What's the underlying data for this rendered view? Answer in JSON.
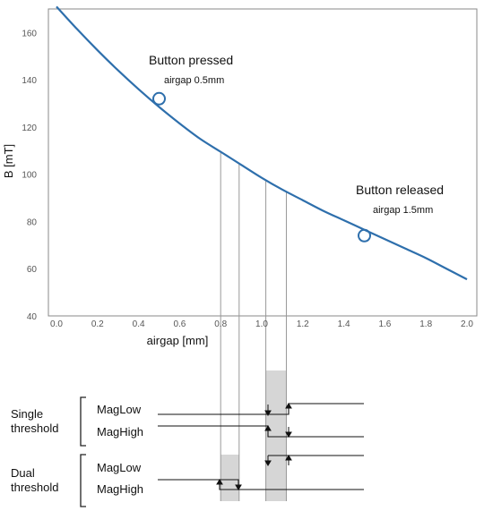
{
  "chart_data": {
    "type": "line",
    "xlabel": "airgap [mm]",
    "ylabel": "B [mT]",
    "xlim": [
      0.0,
      2.0
    ],
    "ylim": [
      40,
      170
    ],
    "x_ticks": [
      "0.0",
      "0.2",
      "0.4",
      "0.6",
      "0.8",
      "1.0",
      "1.2",
      "1.4",
      "1.6",
      "1.8",
      "2.0"
    ],
    "y_ticks": [
      "40",
      "60",
      "80",
      "100",
      "120",
      "140",
      "160"
    ],
    "grid": false,
    "series": [
      {
        "x": [
          0.0,
          0.1,
          0.2,
          0.3,
          0.4,
          0.5,
          0.6,
          0.7,
          0.8,
          0.9,
          1.0,
          1.1,
          1.2,
          1.3,
          1.4,
          1.5,
          1.6,
          1.7,
          1.8,
          1.9,
          2.0
        ],
        "y": [
          171,
          161.5,
          152.5,
          144,
          136,
          128.5,
          121.5,
          115,
          109.5,
          104,
          98.5,
          93.5,
          89,
          84.5,
          80.5,
          76.5,
          72.5,
          68.5,
          64.5,
          60,
          55.5
        ],
        "color": "#2e6fac"
      }
    ],
    "markers": [
      {
        "x": 0.5,
        "y": 132
      },
      {
        "x": 1.5,
        "y": 74
      }
    ],
    "annotations": [
      {
        "title": "Button pressed",
        "subtitle": "airgap 0.5mm"
      },
      {
        "title": "Button released",
        "subtitle": "airgap 1.5mm"
      }
    ],
    "drop_lines_x": [
      0.8,
      0.89,
      1.02,
      1.12
    ]
  },
  "timing": {
    "groups": [
      "Single\nthreshold",
      "Dual\nthreshold"
    ],
    "labels": [
      "MagLow",
      "MagHigh",
      "MagLow",
      "MagHigh"
    ]
  },
  "colors": {
    "curve": "#2e6fac",
    "axis": "#888888",
    "shade": "#d6d6d6"
  }
}
